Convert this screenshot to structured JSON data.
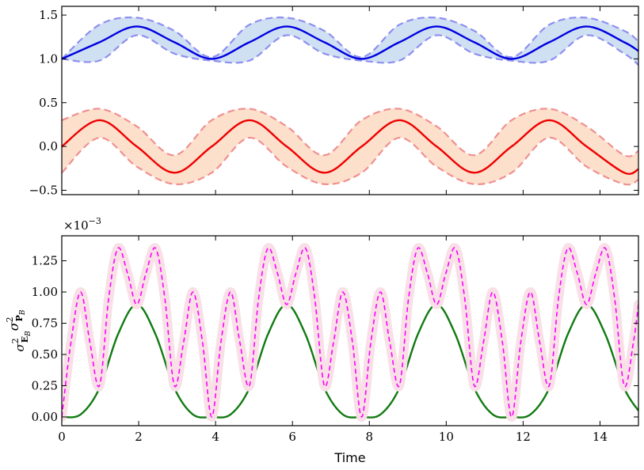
{
  "chart_data": [
    {
      "type": "line",
      "panel": "top",
      "xlim": [
        0,
        15
      ],
      "ylim": [
        -0.55,
        1.6
      ],
      "xticks": [
        0,
        2,
        4,
        6,
        8,
        10,
        12,
        14
      ],
      "yticks": [
        -0.5,
        0.0,
        0.5,
        1.0,
        1.5
      ],
      "ytick_labels": [
        "−0.5",
        "0.0",
        "0.5",
        "1.0",
        "1.5"
      ],
      "grid": false,
      "series": [
        {
          "role": "mean-upper",
          "color": "#0000e0",
          "style": "solid",
          "x": [
            0,
            0.98,
            1.95,
            2.93,
            3.9,
            4.88,
            5.85,
            6.83,
            7.8,
            8.78,
            9.75,
            10.73,
            11.7,
            12.68,
            13.65,
            14.63,
            15.0
          ],
          "y": [
            1.0,
            1.19,
            1.37,
            1.19,
            1.0,
            1.19,
            1.37,
            1.19,
            1.0,
            1.19,
            1.37,
            1.19,
            1.0,
            1.19,
            1.37,
            1.19,
            1.09
          ],
          "band": {
            "color": "#cfe0f3",
            "edge_color": "#8f8ff0",
            "edge_style": "dashed",
            "upper": [
              1.0,
              1.39,
              1.47,
              1.32,
              1.02,
              1.39,
              1.47,
              1.32,
              1.02,
              1.39,
              1.47,
              1.32,
              1.02,
              1.39,
              1.47,
              1.32,
              1.2
            ],
            "lower": [
              1.0,
              0.98,
              1.27,
              1.06,
              0.98,
              0.98,
              1.27,
              1.06,
              0.98,
              0.98,
              1.27,
              1.06,
              0.98,
              0.98,
              1.27,
              1.06,
              0.93
            ]
          }
        },
        {
          "role": "mean-lower",
          "color": "#ee0000",
          "style": "solid",
          "x": [
            0,
            0.98,
            1.95,
            2.93,
            3.9,
            4.88,
            5.85,
            6.83,
            7.8,
            8.78,
            9.75,
            10.73,
            11.7,
            12.68,
            13.65,
            14.63,
            15.0
          ],
          "y": [
            0.0,
            0.3,
            0.0,
            -0.3,
            0.0,
            0.3,
            0.0,
            -0.3,
            0.0,
            0.3,
            0.0,
            -0.3,
            0.0,
            0.3,
            0.0,
            -0.3,
            -0.26
          ],
          "band": {
            "color": "#fde0cc",
            "edge_color": "#f09090",
            "edge_style": "dashed",
            "upper": [
              0.3,
              0.43,
              0.23,
              -0.1,
              0.3,
              0.43,
              0.23,
              -0.1,
              0.3,
              0.43,
              0.23,
              -0.1,
              0.3,
              0.43,
              0.23,
              -0.1,
              -0.05
            ],
            "lower": [
              -0.3,
              0.1,
              -0.23,
              -0.43,
              -0.3,
              0.1,
              -0.23,
              -0.43,
              -0.3,
              0.1,
              -0.23,
              -0.43,
              -0.3,
              0.1,
              -0.23,
              -0.43,
              -0.38
            ]
          }
        }
      ]
    },
    {
      "type": "line",
      "panel": "bottom",
      "xlim": [
        0,
        15
      ],
      "ylim": [
        -0.07,
        1.45
      ],
      "xticks": [
        0,
        2,
        4,
        6,
        8,
        10,
        12,
        14
      ],
      "xtick_labels": [
        "0",
        "2",
        "4",
        "6",
        "8",
        "10",
        "12",
        "14"
      ],
      "yticks": [
        0.0,
        0.25,
        0.5,
        0.75,
        1.0,
        1.25
      ],
      "ytick_labels": [
        "0.00",
        "0.25",
        "0.50",
        "0.75",
        "1.00",
        "1.25"
      ],
      "scale_label": "×10",
      "scale_exponent": "−3",
      "xlabel": "Time",
      "ylabel_main": "σ",
      "ylabel_sup": "2",
      "ylabel_sub_E": "E",
      "ylabel_sub_P": "P",
      "ylabel_sub_B": "B",
      "grid": false,
      "series": [
        {
          "role": "product",
          "color": "#117a11",
          "style": "solid",
          "x": [
            0,
            0.49,
            0.98,
            1.46,
            1.95,
            2.44,
            2.93,
            3.41,
            3.9,
            4.39,
            4.88,
            5.36,
            5.85,
            6.34,
            6.83,
            7.31,
            7.8,
            8.29,
            8.78,
            9.26,
            9.75,
            10.24,
            10.73,
            11.21,
            11.7,
            12.19,
            12.68,
            13.16,
            13.65,
            14.14,
            14.63,
            15.0
          ],
          "y": [
            0.0,
            0.02,
            0.23,
            0.66,
            0.9,
            0.66,
            0.23,
            0.02,
            0.0,
            0.02,
            0.23,
            0.66,
            0.9,
            0.66,
            0.23,
            0.02,
            0.0,
            0.02,
            0.23,
            0.66,
            0.9,
            0.66,
            0.23,
            0.02,
            0.0,
            0.02,
            0.23,
            0.66,
            0.9,
            0.66,
            0.23,
            0.05
          ]
        },
        {
          "role": "bound",
          "color": "#ff00ff",
          "style": "dashed",
          "halo_color": "#f8e0e6",
          "x": [
            0,
            0.24,
            0.49,
            0.73,
            0.98,
            1.22,
            1.46,
            1.71,
            1.95,
            2.19,
            2.44,
            2.68,
            2.93,
            3.17,
            3.41,
            3.66,
            3.9,
            4.14,
            4.39,
            4.63,
            4.88,
            5.12,
            5.36,
            5.61,
            5.85,
            6.09,
            6.34,
            6.58,
            6.83,
            7.07,
            7.31,
            7.56,
            7.8,
            8.04,
            8.29,
            8.53,
            8.78,
            9.02,
            9.26,
            9.51,
            9.75,
            9.99,
            10.24,
            10.48,
            10.73,
            10.97,
            11.21,
            11.46,
            11.7,
            11.94,
            12.19,
            12.43,
            12.68,
            12.92,
            13.16,
            13.41,
            13.65,
            13.89,
            14.14,
            14.38,
            14.63,
            14.87,
            15.0
          ],
          "y": [
            0.0,
            0.6,
            1.0,
            0.6,
            0.25,
            0.95,
            1.35,
            1.15,
            0.9,
            1.15,
            1.35,
            0.95,
            0.25,
            0.6,
            1.0,
            0.6,
            0.0,
            0.6,
            1.0,
            0.6,
            0.25,
            0.95,
            1.35,
            1.15,
            0.9,
            1.15,
            1.35,
            0.95,
            0.25,
            0.6,
            1.0,
            0.6,
            0.0,
            0.6,
            1.0,
            0.6,
            0.25,
            0.95,
            1.35,
            1.15,
            0.9,
            1.15,
            1.35,
            0.95,
            0.25,
            0.6,
            1.0,
            0.6,
            0.0,
            0.6,
            1.0,
            0.6,
            0.25,
            0.95,
            1.35,
            1.15,
            0.9,
            1.15,
            1.35,
            0.95,
            0.25,
            0.6,
            0.9
          ]
        }
      ]
    }
  ]
}
